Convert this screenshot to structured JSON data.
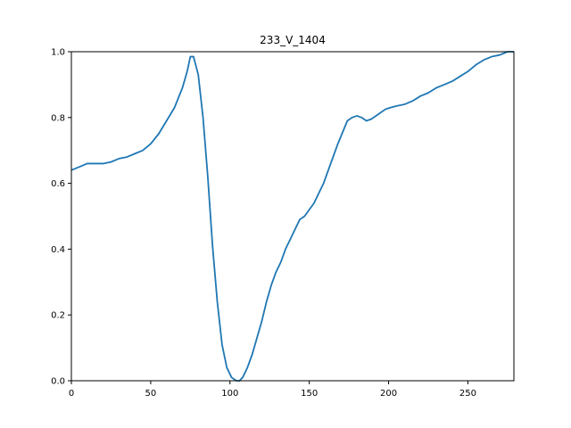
{
  "chart_data": {
    "type": "line",
    "title": "233_V_1404",
    "xlabel": "",
    "ylabel": "",
    "xlim": [
      0,
      279
    ],
    "ylim": [
      0,
      1.0
    ],
    "xticks": [
      0,
      50,
      100,
      150,
      200,
      250
    ],
    "xtick_labels": [
      "0",
      "50",
      "100",
      "150",
      "200",
      "250"
    ],
    "yticks": [
      0.0,
      0.2,
      0.4,
      0.6,
      0.8,
      1.0
    ],
    "ytick_labels": [
      "0.0",
      "0.2",
      "0.4",
      "0.6",
      "0.8",
      "1.0"
    ],
    "grid": false,
    "line_color": "#1f77b4",
    "series": [
      {
        "x": [
          0,
          5,
          10,
          12,
          15,
          20,
          25,
          30,
          35,
          40,
          45,
          50,
          55,
          60,
          65,
          70,
          73,
          75,
          77,
          80,
          83,
          86,
          89,
          92,
          95,
          98,
          101,
          104,
          106,
          108,
          111,
          114,
          117,
          120,
          123,
          126,
          129,
          132,
          135,
          138,
          141,
          144,
          147,
          150,
          153,
          156,
          159,
          162,
          165,
          168,
          171,
          174,
          177,
          180,
          183,
          186,
          189,
          192,
          195,
          198,
          201,
          205,
          210,
          215,
          220,
          225,
          230,
          235,
          240,
          245,
          250,
          255,
          260,
          265,
          270,
          275,
          279
        ],
        "values": [
          0.64,
          0.65,
          0.66,
          0.66,
          0.66,
          0.66,
          0.665,
          0.675,
          0.68,
          0.69,
          0.7,
          0.72,
          0.75,
          0.79,
          0.83,
          0.89,
          0.94,
          0.985,
          0.985,
          0.93,
          0.8,
          0.62,
          0.41,
          0.24,
          0.11,
          0.04,
          0.01,
          0.0,
          0.0,
          0.01,
          0.04,
          0.08,
          0.13,
          0.18,
          0.24,
          0.29,
          0.33,
          0.36,
          0.4,
          0.43,
          0.46,
          0.49,
          0.5,
          0.52,
          0.54,
          0.57,
          0.6,
          0.64,
          0.68,
          0.72,
          0.755,
          0.79,
          0.8,
          0.805,
          0.8,
          0.79,
          0.795,
          0.805,
          0.815,
          0.825,
          0.83,
          0.835,
          0.84,
          0.85,
          0.865,
          0.875,
          0.89,
          0.9,
          0.91,
          0.925,
          0.94,
          0.96,
          0.975,
          0.985,
          0.99,
          1.0,
          1.0
        ]
      }
    ]
  }
}
